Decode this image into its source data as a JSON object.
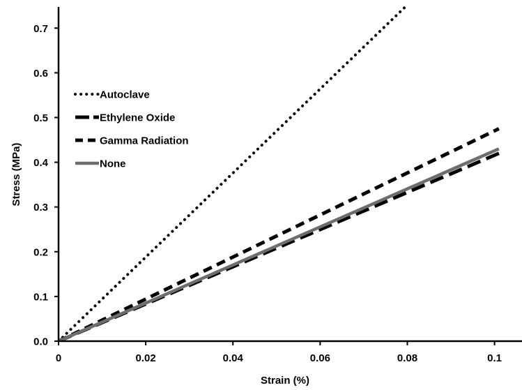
{
  "chart_data": {
    "type": "line",
    "title": "",
    "xlabel": "Strain (%)",
    "ylabel": "Stress (MPa)",
    "xlim": [
      0,
      0.106
    ],
    "ylim": [
      0,
      0.75
    ],
    "xticks": [
      0,
      0.02,
      0.04,
      0.06,
      0.08,
      0.1
    ],
    "xtick_labels": [
      "0",
      "0.02",
      "0.04",
      "0.06",
      "0.08",
      "0.1"
    ],
    "yticks": [
      0,
      0.1,
      0.2,
      0.3,
      0.4,
      0.5,
      0.6,
      0.7
    ],
    "ytick_labels": [
      "0.0",
      "0.1",
      "0.2",
      "0.3",
      "0.4",
      "0.5",
      "0.6",
      "0.7"
    ],
    "grid": false,
    "legend_position": "top-left",
    "series": [
      {
        "name": "Autoclave",
        "style": "dotted",
        "color": "#000000",
        "x": [
          0,
          0.0798
        ],
        "y": [
          0,
          0.75
        ]
      },
      {
        "name": "Ethylene Oxide",
        "style": "dashed-long",
        "color": "#000000",
        "x": [
          0,
          0.101
        ],
        "y": [
          0,
          0.42
        ]
      },
      {
        "name": "Gamma Radiation",
        "style": "dashed",
        "color": "#000000",
        "x": [
          0,
          0.101
        ],
        "y": [
          0,
          0.475
        ]
      },
      {
        "name": "None",
        "style": "solid",
        "color": "#6d6d6d",
        "x": [
          0,
          0.101
        ],
        "y": [
          0,
          0.43
        ]
      }
    ]
  }
}
